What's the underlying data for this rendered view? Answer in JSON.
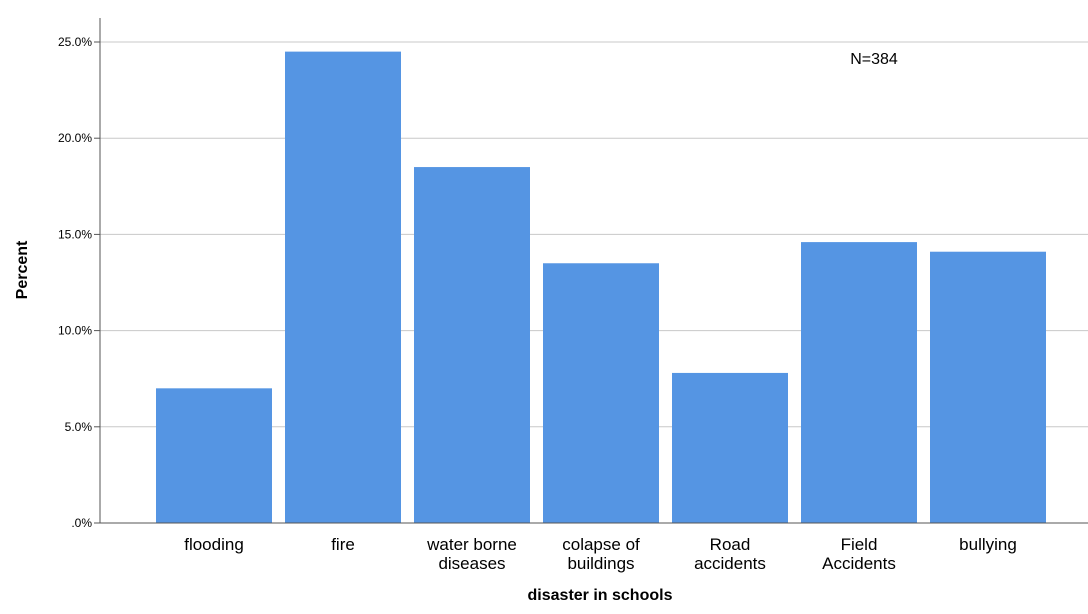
{
  "chart_data": {
    "type": "bar",
    "xlabel": "disaster in schools",
    "ylabel": "Percent",
    "annotation": "N=384",
    "categories": [
      [
        "flooding"
      ],
      [
        "fire"
      ],
      [
        "water borne",
        "diseases"
      ],
      [
        "colapse of",
        "buildings"
      ],
      [
        "Road",
        "accidents"
      ],
      [
        "Field",
        "Accidents"
      ],
      [
        "bullying"
      ]
    ],
    "values": [
      7.0,
      24.5,
      18.5,
      13.5,
      7.8,
      14.6,
      14.1
    ],
    "ylim": [
      0,
      25
    ],
    "yticks": [
      {
        "value": 0,
        "label": ".0%"
      },
      {
        "value": 5,
        "label": "5.0%"
      },
      {
        "value": 10,
        "label": "10.0%"
      },
      {
        "value": 15,
        "label": "15.0%"
      },
      {
        "value": 20,
        "label": "20.0%"
      },
      {
        "value": 25,
        "label": "25.0%"
      }
    ],
    "grid": true,
    "bar_color": "#5595E3",
    "grid_color": "#C8C8C8",
    "axis_color": "#555555"
  }
}
